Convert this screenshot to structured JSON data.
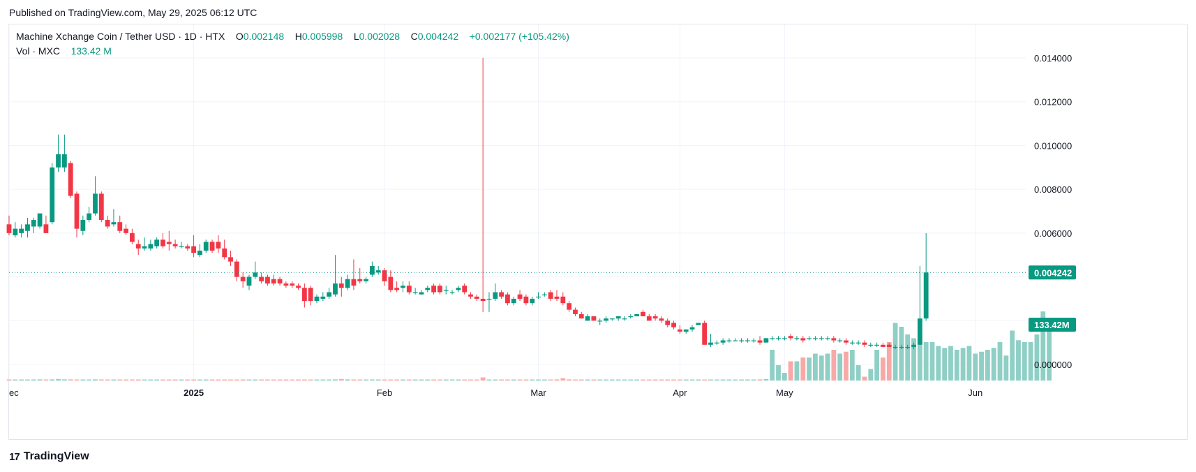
{
  "published": "Published on TradingView.com, May 29, 2025 06:12 UTC",
  "legend": {
    "symbol": "Machine Xchange Coin / Tether USD · 1D · HTX",
    "o_label": "O",
    "o_value": "0.002148",
    "h_label": "H",
    "h_value": "0.005998",
    "l_label": "L",
    "l_value": "0.002028",
    "c_label": "C",
    "c_value": "0.004242",
    "change": "+0.002177 (+105.42%)",
    "vol_label": "Vol · MXC",
    "vol_value": "133.42 M"
  },
  "footer": {
    "brand": "TradingView",
    "mark": "17"
  },
  "colors": {
    "up": "#089981",
    "down": "#f23645",
    "up_vol": "#8fcfc5",
    "down_vol": "#f7a9a7",
    "grid": "#f0f3fa",
    "text": "#131722"
  },
  "chart_data": {
    "type": "candlestick",
    "price_axis": {
      "ticks": [
        "0.014000",
        "0.012000",
        "0.010000",
        "0.008000",
        "0.006000",
        "0.000000"
      ],
      "ylim": [
        -0.0007,
        0.015
      ],
      "current_price_label": "0.004242",
      "current_volume_label": "133.42M"
    },
    "time_axis": {
      "ticks": [
        {
          "label": "ec",
          "day": 0
        },
        {
          "label": "2025",
          "day": 30
        },
        {
          "label": "Feb",
          "day": 61
        },
        {
          "label": "Mar",
          "day": 86
        },
        {
          "label": "Apr",
          "day": 109
        },
        {
          "label": "May",
          "day": 126
        },
        {
          "label": "Jun",
          "day": 157
        }
      ],
      "start_date": "2024-12-01",
      "last_date": "2025-05-29"
    },
    "grid": true,
    "candles": [
      [
        0.0064,
        0.0068,
        0.006,
        0.0059
      ],
      [
        0.0059,
        0.0065,
        0.0062,
        0.0058
      ],
      [
        0.006,
        0.0064,
        0.0062,
        0.0058
      ],
      [
        0.0061,
        0.0067,
        0.0064,
        0.0058
      ],
      [
        0.0063,
        0.0067,
        0.0066,
        0.006
      ],
      [
        0.0063,
        0.0069,
        0.0069,
        0.0062
      ],
      [
        0.0064,
        0.0068,
        0.006,
        0.006
      ],
      [
        0.0065,
        0.0092,
        0.009,
        0.0064
      ],
      [
        0.009,
        0.0105,
        0.0096,
        0.0088
      ],
      [
        0.009,
        0.0105,
        0.0096,
        0.0088
      ],
      [
        0.0092,
        0.0093,
        0.0077,
        0.0076
      ],
      [
        0.0078,
        0.0079,
        0.0062,
        0.0058
      ],
      [
        0.0061,
        0.0068,
        0.0066,
        0.0059
      ],
      [
        0.0066,
        0.0072,
        0.0069,
        0.0065
      ],
      [
        0.0069,
        0.0086,
        0.0078,
        0.0068
      ],
      [
        0.0078,
        0.0079,
        0.0066,
        0.0065
      ],
      [
        0.0066,
        0.0068,
        0.0063,
        0.0062
      ],
      [
        0.0064,
        0.0071,
        0.0065,
        0.0063
      ],
      [
        0.0065,
        0.0068,
        0.0061,
        0.006
      ],
      [
        0.0062,
        0.0064,
        0.006,
        0.0059
      ],
      [
        0.006,
        0.0062,
        0.0056,
        0.0055
      ],
      [
        0.0055,
        0.0057,
        0.0053,
        0.005
      ],
      [
        0.0053,
        0.0058,
        0.0054,
        0.0052
      ],
      [
        0.0053,
        0.0057,
        0.0055,
        0.0052
      ],
      [
        0.0054,
        0.0058,
        0.0057,
        0.0053
      ],
      [
        0.0057,
        0.006,
        0.0054,
        0.0053
      ],
      [
        0.0056,
        0.0061,
        0.0055,
        0.0052
      ],
      [
        0.0055,
        0.0057,
        0.0054,
        0.0053
      ],
      [
        0.0054,
        0.0056,
        0.0054,
        0.0053
      ],
      [
        0.0054,
        0.0055,
        0.0053,
        0.0052
      ],
      [
        0.0054,
        0.0059,
        0.0051,
        0.0049
      ],
      [
        0.005,
        0.0055,
        0.0052,
        0.0049
      ],
      [
        0.0052,
        0.0057,
        0.0056,
        0.0051
      ],
      [
        0.0056,
        0.0057,
        0.0052,
        0.0051
      ],
      [
        0.0056,
        0.0059,
        0.0053,
        0.0051
      ],
      [
        0.0053,
        0.0057,
        0.0049,
        0.0048
      ],
      [
        0.0049,
        0.0052,
        0.0047,
        0.0045
      ],
      [
        0.0047,
        0.0048,
        0.004,
        0.0038
      ],
      [
        0.004,
        0.0042,
        0.0038,
        0.0035
      ],
      [
        0.0036,
        0.0041,
        0.004,
        0.0034
      ],
      [
        0.004,
        0.0047,
        0.0042,
        0.0039
      ],
      [
        0.004,
        0.0042,
        0.0038,
        0.0037
      ],
      [
        0.004,
        0.0041,
        0.0037,
        0.0036
      ],
      [
        0.0039,
        0.0041,
        0.0037,
        0.0036
      ],
      [
        0.0039,
        0.004,
        0.0037,
        0.0036
      ],
      [
        0.0037,
        0.0038,
        0.0036,
        0.0035
      ],
      [
        0.0037,
        0.0038,
        0.0036,
        0.0035
      ],
      [
        0.0036,
        0.0037,
        0.0035,
        0.0034
      ],
      [
        0.0035,
        0.0037,
        0.0029,
        0.0026
      ],
      [
        0.0035,
        0.0036,
        0.0029,
        0.0027
      ],
      [
        0.0029,
        0.0032,
        0.0031,
        0.0028
      ],
      [
        0.003,
        0.0033,
        0.0031,
        0.0029
      ],
      [
        0.0031,
        0.0035,
        0.0033,
        0.003
      ],
      [
        0.0032,
        0.005,
        0.0037,
        0.0031
      ],
      [
        0.0037,
        0.004,
        0.0035,
        0.0031
      ],
      [
        0.0035,
        0.0041,
        0.0039,
        0.0034
      ],
      [
        0.0039,
        0.0048,
        0.0036,
        0.0034
      ],
      [
        0.0039,
        0.0044,
        0.0038,
        0.0037
      ],
      [
        0.0038,
        0.004,
        0.0039,
        0.0037
      ],
      [
        0.0041,
        0.0047,
        0.0045,
        0.004
      ],
      [
        0.0042,
        0.0045,
        0.0043,
        0.0041
      ],
      [
        0.0043,
        0.0044,
        0.0038,
        0.0036
      ],
      [
        0.004,
        0.0043,
        0.0034,
        0.0033
      ],
      [
        0.0035,
        0.0038,
        0.0034,
        0.0033
      ],
      [
        0.0035,
        0.0038,
        0.0036,
        0.0033
      ],
      [
        0.0036,
        0.0038,
        0.0033,
        0.0032
      ],
      [
        0.0033,
        0.0035,
        0.0033,
        0.0032
      ],
      [
        0.0032,
        0.0034,
        0.0033,
        0.0032
      ],
      [
        0.0034,
        0.0036,
        0.0035,
        0.0033
      ],
      [
        0.0036,
        0.0037,
        0.0033,
        0.0032
      ],
      [
        0.0036,
        0.0037,
        0.0033,
        0.0032
      ],
      [
        0.0034,
        0.0036,
        0.0034,
        0.0032
      ],
      [
        0.0033,
        0.0034,
        0.0033,
        0.0032
      ],
      [
        0.0034,
        0.0036,
        0.0035,
        0.0033
      ],
      [
        0.0036,
        0.0037,
        0.0033,
        0.0032
      ],
      [
        0.0032,
        0.0033,
        0.0031,
        0.003
      ],
      [
        0.0031,
        0.0032,
        0.003,
        0.0029
      ],
      [
        0.003,
        0.014,
        0.0029,
        0.0024
      ],
      [
        0.003,
        0.0033,
        0.003,
        0.0024
      ],
      [
        0.003,
        0.0037,
        0.0033,
        0.0029
      ],
      [
        0.0033,
        0.0034,
        0.0031,
        0.003
      ],
      [
        0.0032,
        0.0033,
        0.0028,
        0.0027
      ],
      [
        0.0028,
        0.0031,
        0.003,
        0.0027
      ],
      [
        0.0032,
        0.0034,
        0.003,
        0.0029
      ],
      [
        0.0031,
        0.0032,
        0.0028,
        0.0027
      ],
      [
        0.0028,
        0.0031,
        0.003,
        0.0027
      ],
      [
        0.0031,
        0.0033,
        0.0031,
        0.003
      ],
      [
        0.0032,
        0.0033,
        0.0032,
        0.0031
      ],
      [
        0.0033,
        0.0034,
        0.003,
        0.0029
      ],
      [
        0.0031,
        0.0034,
        0.003,
        0.0029
      ],
      [
        0.0031,
        0.0033,
        0.0028,
        0.0027
      ],
      [
        0.0028,
        0.0029,
        0.0025,
        0.0024
      ],
      [
        0.0025,
        0.0026,
        0.0023,
        0.0022
      ],
      [
        0.0023,
        0.0024,
        0.0021,
        0.0021
      ],
      [
        0.002,
        0.0023,
        0.0022,
        0.002
      ],
      [
        0.0022,
        0.0022,
        0.002,
        0.002
      ],
      [
        0.002,
        0.0021,
        0.002,
        0.0018
      ],
      [
        0.002,
        0.0022,
        0.0021,
        0.0019
      ],
      [
        0.0021,
        0.0021,
        0.0021,
        0.002
      ],
      [
        0.0021,
        0.0022,
        0.0022,
        0.002
      ],
      [
        0.0021,
        0.0022,
        0.0021,
        0.002
      ],
      [
        0.0022,
        0.0023,
        0.0022,
        0.0021
      ],
      [
        0.0022,
        0.0023,
        0.0023,
        0.0022
      ],
      [
        0.0024,
        0.0025,
        0.0022,
        0.0022
      ],
      [
        0.0022,
        0.0023,
        0.002,
        0.002
      ],
      [
        0.0022,
        0.0023,
        0.0021,
        0.002
      ],
      [
        0.0021,
        0.0022,
        0.002,
        0.0019
      ],
      [
        0.002,
        0.0021,
        0.0018,
        0.0017
      ],
      [
        0.0019,
        0.002,
        0.0017,
        0.0016
      ],
      [
        0.0016,
        0.0018,
        0.0015,
        0.0014
      ],
      [
        0.0015,
        0.0016,
        0.0016,
        0.0014
      ],
      [
        0.0016,
        0.0018,
        0.0017,
        0.0015
      ],
      [
        0.0018,
        0.0019,
        0.0019,
        0.0018
      ],
      [
        0.0019,
        0.002,
        0.0009,
        0.0009
      ],
      [
        0.0009,
        0.0014,
        0.001,
        0.0008
      ],
      [
        0.001,
        0.0011,
        0.001,
        0.0009
      ],
      [
        0.001,
        0.0012,
        0.0011,
        0.0009
      ],
      [
        0.0011,
        0.0012,
        0.0011,
        0.001
      ],
      [
        0.0011,
        0.0012,
        0.0011,
        0.0011
      ],
      [
        0.0011,
        0.0012,
        0.0011,
        0.001
      ],
      [
        0.0011,
        0.0012,
        0.0011,
        0.001
      ],
      [
        0.0011,
        0.0012,
        0.0011,
        0.001
      ],
      [
        0.0011,
        0.0013,
        0.001,
        0.0009
      ],
      [
        0.001,
        0.0012,
        0.0012,
        0.001
      ],
      [
        0.0012,
        0.0013,
        0.0012,
        0.0011
      ],
      [
        0.0012,
        0.0013,
        0.0012,
        0.0011
      ],
      [
        0.0012,
        0.0013,
        0.0012,
        0.0011
      ],
      [
        0.0013,
        0.0014,
        0.0012,
        0.0011
      ],
      [
        0.0012,
        0.0013,
        0.0012,
        0.0011
      ],
      [
        0.0012,
        0.0013,
        0.0011,
        0.001
      ],
      [
        0.0012,
        0.0013,
        0.0012,
        0.0011
      ],
      [
        0.0012,
        0.0013,
        0.0012,
        0.0011
      ],
      [
        0.0012,
        0.0013,
        0.0012,
        0.0011
      ],
      [
        0.0012,
        0.0013,
        0.0012,
        0.0011
      ],
      [
        0.0012,
        0.0013,
        0.0011,
        0.001
      ],
      [
        0.0011,
        0.0012,
        0.0011,
        0.001
      ],
      [
        0.0011,
        0.0012,
        0.001,
        0.0009
      ],
      [
        0.001,
        0.0011,
        0.001,
        0.0009
      ],
      [
        0.001,
        0.0011,
        0.001,
        0.0009
      ],
      [
        0.001,
        0.0011,
        0.0009,
        0.0008
      ],
      [
        0.0009,
        0.001,
        0.0009,
        0.0008
      ],
      [
        0.0009,
        0.001,
        0.0009,
        0.0008
      ],
      [
        0.0009,
        0.001,
        0.0008,
        0.0008
      ],
      [
        0.0009,
        0.001,
        0.0008,
        0.0008
      ],
      [
        0.0008,
        0.0009,
        0.0008,
        0.0007
      ],
      [
        0.0008,
        0.0009,
        0.0008,
        0.0007
      ],
      [
        0.0008,
        0.0009,
        0.0008,
        0.0007
      ],
      [
        0.0008,
        0.001,
        0.0009,
        0.0007
      ],
      [
        0.0009,
        0.0045,
        0.0021,
        0.0009
      ],
      [
        0.0021,
        0.006,
        0.0042,
        0.002
      ]
    ],
    "volume_millions": [
      2,
      2,
      2,
      2,
      2,
      3,
      2,
      3,
      4,
      3,
      3,
      2,
      2,
      2,
      3,
      2,
      2,
      2,
      2,
      2,
      2,
      2,
      2,
      2,
      2,
      2,
      2,
      2,
      2,
      2,
      2,
      2,
      2,
      2,
      2,
      2,
      2,
      2,
      2,
      2,
      2,
      2,
      2,
      2,
      2,
      2,
      2,
      2,
      2,
      2,
      2,
      2,
      2,
      3,
      4,
      3,
      2,
      2,
      2,
      2,
      2,
      2,
      2,
      2,
      2,
      2,
      2,
      2,
      2,
      2,
      2,
      2,
      2,
      2,
      2,
      2,
      2,
      8,
      2,
      2,
      2,
      2,
      2,
      2,
      2,
      2,
      2,
      2,
      2,
      3,
      6,
      3,
      2,
      2,
      2,
      2,
      2,
      2,
      2,
      2,
      2,
      2,
      2,
      2,
      2,
      2,
      2,
      2,
      2,
      2,
      2,
      2,
      2,
      2,
      2,
      2,
      2,
      2,
      2,
      2,
      2,
      2,
      3,
      4,
      80,
      40,
      20,
      50,
      50,
      60,
      60,
      70,
      65,
      70,
      80,
      70,
      75,
      80,
      40,
      10,
      30,
      80,
      60,
      100,
      150,
      140,
      120,
      110,
      110,
      100,
      100,
      90,
      85,
      90,
      80,
      85,
      90,
      70,
      75,
      80,
      85,
      100,
      65,
      130,
      105,
      100,
      100,
      120,
      180,
      133
    ]
  }
}
